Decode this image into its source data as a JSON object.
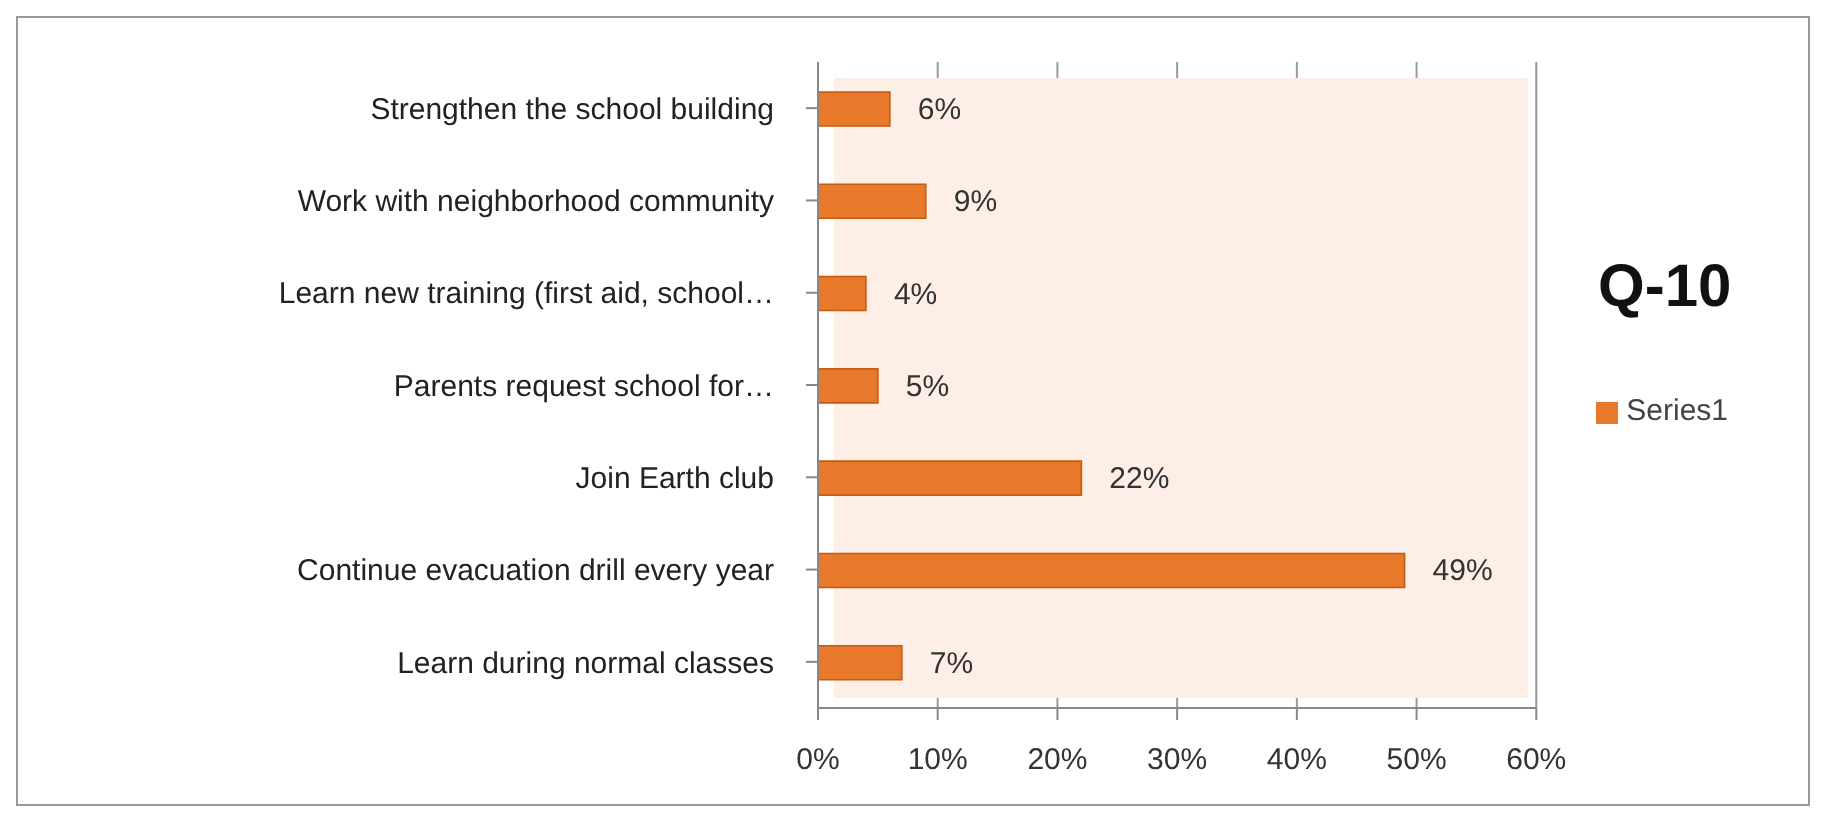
{
  "chart_data": {
    "type": "bar",
    "orientation": "horizontal",
    "title": "Q-10",
    "categories": [
      "Strengthen the school building",
      "Work with neighborhood community",
      "Learn new training (first aid, school…",
      "Parents request school for…",
      "Join Earth club",
      "Continue evacuation drill every year",
      "Learn during normal classes"
    ],
    "series": [
      {
        "name": "Series1",
        "color": "#e8782a",
        "values": [
          6,
          9,
          4,
          5,
          22,
          49,
          7
        ],
        "value_labels": [
          "6%",
          "9%",
          "4%",
          "5%",
          "22%",
          "49%",
          "7%"
        ]
      }
    ],
    "xlim": [
      0,
      60
    ],
    "xticks": [
      {
        "value": 0,
        "label": "0%"
      },
      {
        "value": 10,
        "label": "10%"
      },
      {
        "value": 20,
        "label": "20%"
      },
      {
        "value": 30,
        "label": "30%"
      },
      {
        "value": 40,
        "label": "40%"
      },
      {
        "value": 50,
        "label": "50%"
      },
      {
        "value": 60,
        "label": "60%"
      }
    ],
    "grid": "x",
    "legend": "right"
  }
}
